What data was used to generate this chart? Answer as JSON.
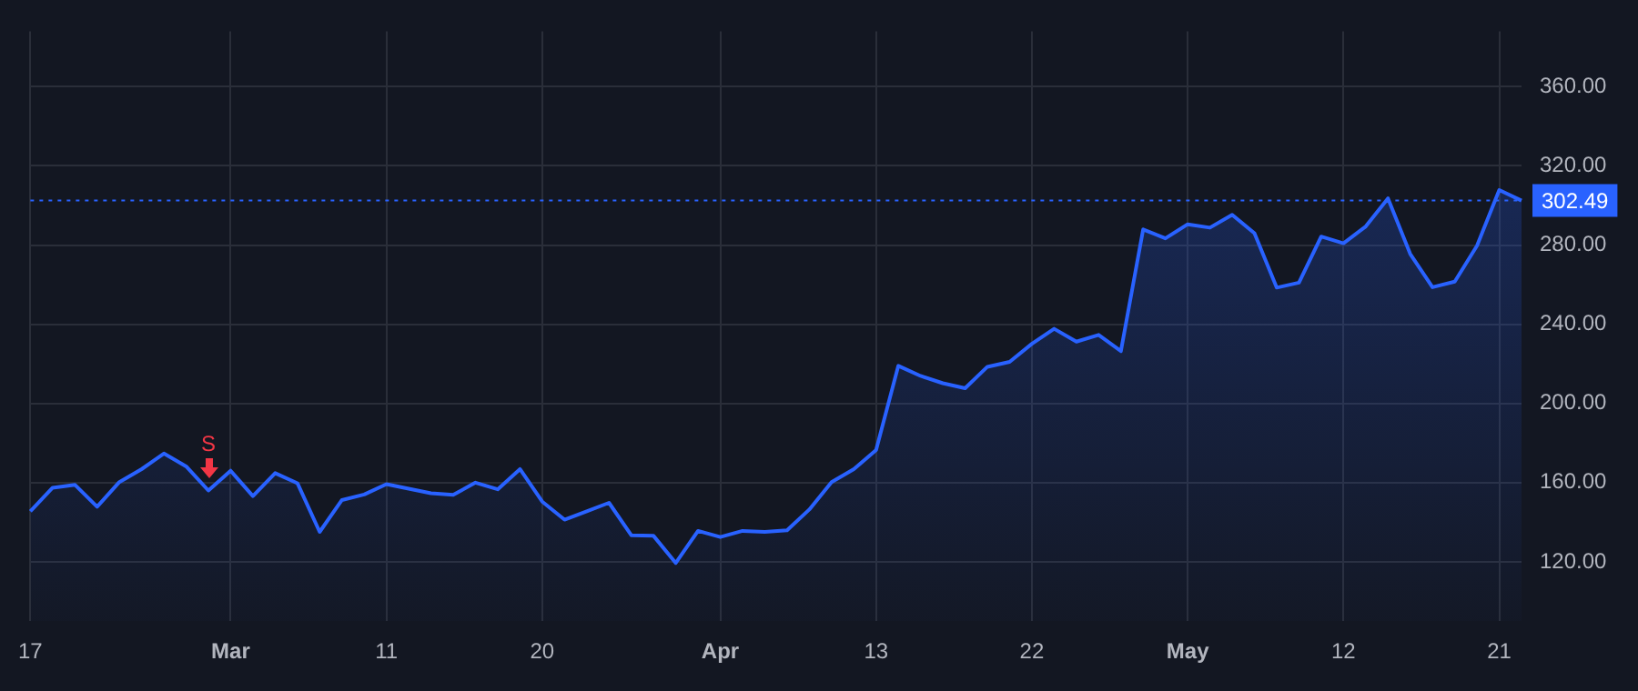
{
  "chart_data": {
    "type": "area",
    "categories": [
      "17",
      null,
      null,
      null,
      null,
      null,
      null,
      null,
      null,
      "Mar",
      null,
      null,
      null,
      null,
      null,
      null,
      "11",
      null,
      null,
      null,
      null,
      null,
      null,
      "20",
      null,
      null,
      null,
      null,
      null,
      null,
      null,
      "Apr",
      null,
      null,
      null,
      null,
      null,
      null,
      "13",
      null,
      null,
      null,
      null,
      null,
      null,
      "22",
      null,
      null,
      null,
      null,
      null,
      null,
      "May",
      null,
      null,
      null,
      null,
      null,
      null,
      "12",
      null,
      null,
      null,
      null,
      null,
      null,
      "21",
      null
    ],
    "series": [
      {
        "color": "#2962ff",
        "values": [
          145.5,
          157.4,
          158.9,
          147.8,
          160.3,
          166.8,
          174.7,
          168.2,
          156,
          166,
          153.2,
          164.8,
          159.7,
          135.1,
          151.2,
          154,
          159.2,
          156.9,
          154.6,
          153.8,
          160,
          156.6,
          166.8,
          150.4,
          141.3,
          145.5,
          149.8,
          133.4,
          133.1,
          119.4,
          135.6,
          132.5,
          135.6,
          135.1,
          135.9,
          146.4,
          160.3,
          166.8,
          176.4,
          219,
          213.9,
          210.2,
          207.7,
          218.5,
          221,
          230.1,
          237.7,
          231.2,
          234.6,
          226.4,
          287.9,
          283.4,
          290.5,
          288.8,
          295.3,
          286,
          258.5,
          261,
          284.3,
          280.9,
          289.4,
          303.6,
          275.5,
          258.7,
          261.5,
          279.7,
          307.8,
          302.49
        ]
      }
    ],
    "ylim": [
      90,
      388
    ],
    "yticks": [
      {
        "value": 120,
        "label": "120.00"
      },
      {
        "value": 160,
        "label": "160.00"
      },
      {
        "value": 200,
        "label": "200.00"
      },
      {
        "value": 240,
        "label": "240.00"
      },
      {
        "value": 280,
        "label": "280.00"
      },
      {
        "value": 320,
        "label": "320.00"
      },
      {
        "value": 360,
        "label": "360.00"
      }
    ],
    "ref_lines": [
      {
        "axis": "y",
        "value": 302.49,
        "label": "302.49",
        "color": "#2962ff",
        "line_style": "dotted"
      }
    ],
    "annotations": [
      {
        "text": "S",
        "y": 156
      }
    ],
    "grid": true,
    "legend": false,
    "marker": "none",
    "line_style": "solid"
  }
}
